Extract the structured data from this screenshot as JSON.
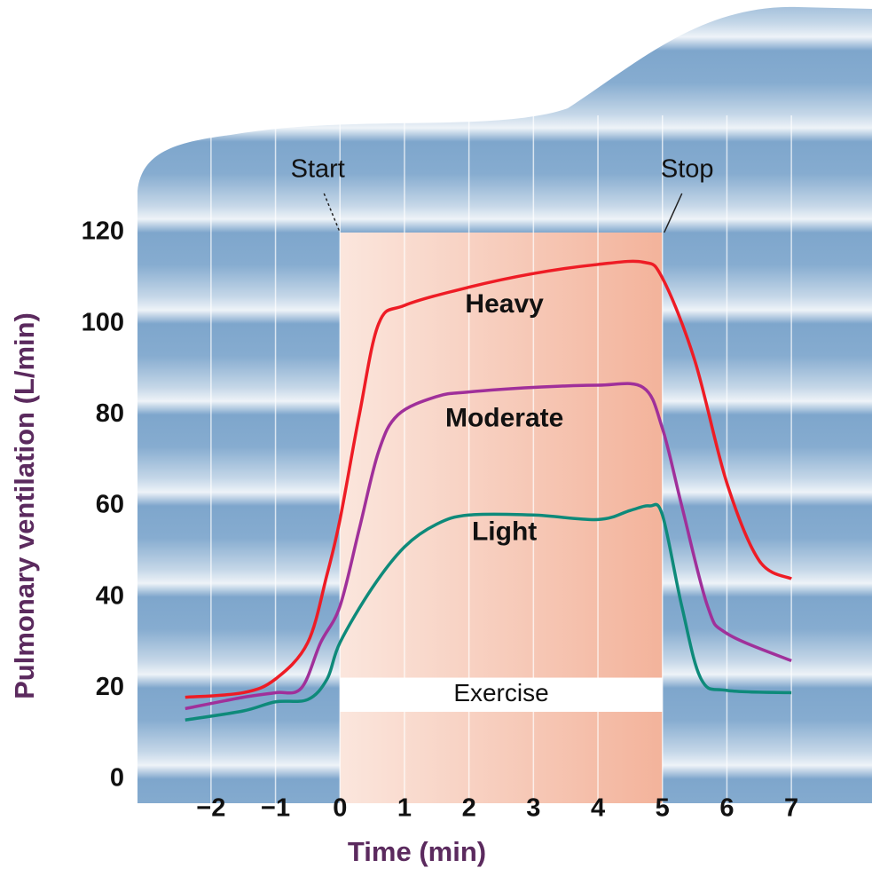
{
  "chart_data": {
    "type": "line",
    "xlabel": "Time (min)",
    "ylabel": "Pulmonary ventilation (L/min)",
    "xlim": [
      -3.14,
      8.25
    ],
    "ylim": [
      0,
      120
    ],
    "xticks": [
      {
        "value": -2,
        "label": "−2"
      },
      {
        "value": -1,
        "label": "−1"
      },
      0,
      1,
      2,
      3,
      4,
      5,
      6,
      7
    ],
    "yticks": [
      0,
      20,
      40,
      60,
      80,
      100,
      120
    ],
    "grid": true,
    "exercise_span": [
      0,
      5
    ],
    "annotations": {
      "start": "Start",
      "stop": "Stop",
      "exercise": "Exercise"
    },
    "series": [
      {
        "name": "Heavy",
        "color": "#ee1c25",
        "x": [
          -2.4,
          -1.5,
          -1,
          -0.5,
          -0.2,
          0,
          0.3,
          0.6,
          1,
          2,
          3,
          4,
          4.7,
          5,
          5.5,
          6,
          6.5,
          7
        ],
        "values": [
          18,
          19,
          22,
          30,
          45,
          57,
          80,
          100,
          104,
          108,
          111,
          113,
          113.5,
          110,
          92,
          65,
          48,
          44
        ]
      },
      {
        "name": "Moderate",
        "color": "#a0309a",
        "x": [
          -2.4,
          -1.5,
          -1,
          -0.6,
          -0.3,
          0,
          0.3,
          0.6,
          0.9,
          1.5,
          2,
          3,
          4,
          4.7,
          5,
          5.3,
          5.7,
          6,
          7
        ],
        "values": [
          15.5,
          18,
          19,
          20,
          30,
          38,
          55,
          72,
          80,
          84,
          85,
          86,
          86.5,
          86,
          77,
          60,
          38,
          32,
          26
        ]
      },
      {
        "name": "Light",
        "color": "#0e8a7a",
        "x": [
          -2.4,
          -1.5,
          -1,
          -0.5,
          -0.2,
          0,
          0.5,
          1,
          1.5,
          2,
          3,
          4,
          4.5,
          4.8,
          5,
          5.3,
          5.6,
          6,
          7
        ],
        "values": [
          13,
          15,
          17,
          17.5,
          22,
          30,
          42,
          51,
          56,
          58,
          58,
          57,
          59,
          60,
          58,
          38,
          22,
          19.5,
          19
        ]
      }
    ]
  }
}
